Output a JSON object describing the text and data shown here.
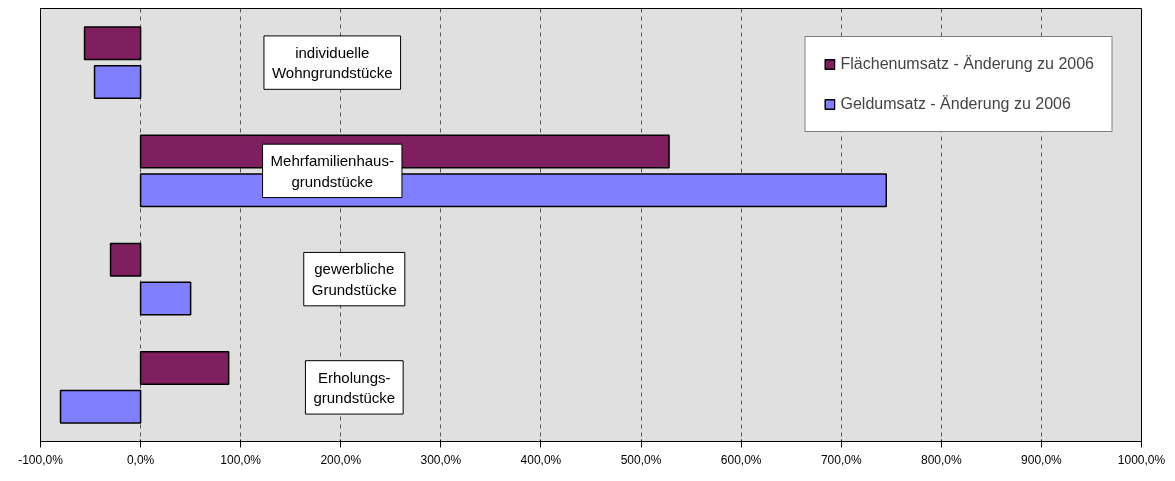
{
  "chart_data": {
    "type": "bar",
    "orientation": "horizontal",
    "categories": [
      "individuelle\nWohngrundstücke",
      "Mehrfamilienhaus-\ngrundstücke",
      "gewerbliche\nGrundstücke",
      "Erholungs-\ngrundstücke"
    ],
    "series": [
      {
        "name": "Flächenumsatz - Änderung zu 2006",
        "color": "#7f1f5f",
        "values": [
          -56,
          528,
          -30,
          88
        ]
      },
      {
        "name": "Geldumsatz - Änderung zu 2006",
        "color": "#8080ff",
        "values": [
          -46,
          745,
          50,
          -80
        ]
      }
    ],
    "xlim": [
      -100,
      1000
    ],
    "xticks": [
      {
        "value": -100,
        "label": "-100,0%"
      },
      {
        "value": 0,
        "label": "0,0%"
      },
      {
        "value": 100,
        "label": "100,0%"
      },
      {
        "value": 200,
        "label": "200,0%"
      },
      {
        "value": 300,
        "label": "300,0%"
      },
      {
        "value": 400,
        "label": "400,0%"
      },
      {
        "value": 500,
        "label": "500,0%"
      },
      {
        "value": 600,
        "label": "600,0%"
      },
      {
        "value": 700,
        "label": "700,0%"
      },
      {
        "value": 800,
        "label": "800,0%"
      },
      {
        "value": 900,
        "label": "900,0%"
      },
      {
        "value": 1000,
        "label": "1000,0%"
      }
    ],
    "grid": "x",
    "legend": "top right",
    "tick_labels": "x"
  }
}
